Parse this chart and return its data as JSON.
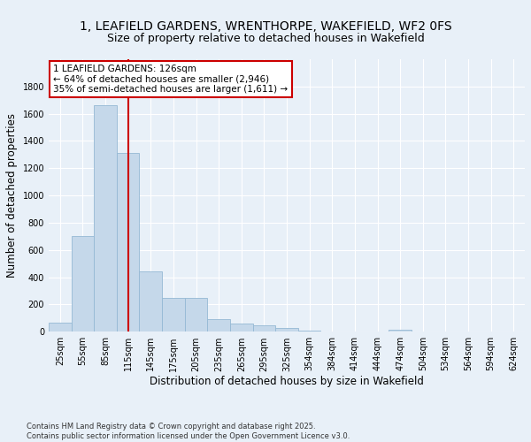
{
  "title_line1": "1, LEAFIELD GARDENS, WRENTHORPE, WAKEFIELD, WF2 0FS",
  "title_line2": "Size of property relative to detached houses in Wakefield",
  "xlabel": "Distribution of detached houses by size in Wakefield",
  "ylabel": "Number of detached properties",
  "categories": [
    "25sqm",
    "55sqm",
    "85sqm",
    "115sqm",
    "145sqm",
    "175sqm",
    "205sqm",
    "235sqm",
    "265sqm",
    "295sqm",
    "325sqm",
    "354sqm",
    "384sqm",
    "414sqm",
    "444sqm",
    "474sqm",
    "504sqm",
    "534sqm",
    "564sqm",
    "594sqm",
    "624sqm"
  ],
  "values": [
    65,
    700,
    1660,
    1310,
    445,
    250,
    250,
    95,
    60,
    45,
    25,
    10,
    0,
    0,
    0,
    15,
    0,
    0,
    0,
    0,
    0
  ],
  "bar_color": "#c5d8ea",
  "bar_edge_color": "#95b8d4",
  "vline_x_index": 3,
  "vline_color": "#cc0000",
  "annotation_text": "1 LEAFIELD GARDENS: 126sqm\n← 64% of detached houses are smaller (2,946)\n35% of semi-detached houses are larger (1,611) →",
  "annotation_box_color": "#ffffff",
  "annotation_box_edge_color": "#cc0000",
  "ylim": [
    0,
    2000
  ],
  "yticks": [
    0,
    200,
    400,
    600,
    800,
    1000,
    1200,
    1400,
    1600,
    1800
  ],
  "footnote": "Contains HM Land Registry data © Crown copyright and database right 2025.\nContains public sector information licensed under the Open Government Licence v3.0.",
  "background_color": "#e8f0f8",
  "grid_color": "#ffffff",
  "title_fontsize": 10,
  "subtitle_fontsize": 9,
  "axis_label_fontsize": 8.5,
  "tick_fontsize": 7,
  "annotation_fontsize": 7.5,
  "footnote_fontsize": 6
}
